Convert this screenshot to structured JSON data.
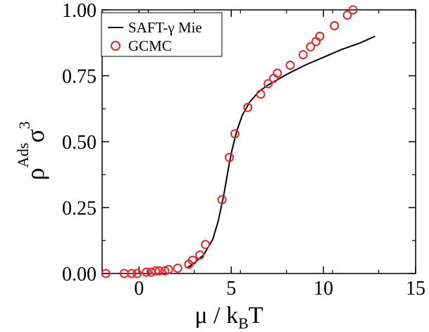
{
  "chart_data": {
    "type": "scatter",
    "xlabel": {
      "main": "μ / k",
      "sub": "B",
      "tail": "T"
    },
    "ylabel": {
      "base": "ρ",
      "sup": "Ads",
      "main": "σ",
      "exp": "3"
    },
    "xlim": [
      -2,
      15
    ],
    "ylim": [
      0,
      1.0
    ],
    "xticks": [
      0,
      5,
      10,
      15
    ],
    "yticks": [
      0.0,
      0.25,
      0.5,
      0.75,
      1.0
    ],
    "xtick_labels": [
      "0",
      "5",
      "10",
      "15"
    ],
    "ytick_labels": [
      "0.00",
      "0.25",
      "0.50",
      "0.75",
      "1.00"
    ],
    "grid": false,
    "legend_position": "top-left",
    "colors": {
      "line": "#000000",
      "markers": "#e8232a"
    },
    "series": [
      {
        "name": "SAFT-γ Mie",
        "style": "line",
        "x": [
          2.6,
          3.0,
          3.5,
          4.0,
          4.3,
          4.6,
          4.85,
          5.05,
          5.3,
          5.6,
          6.0,
          6.5,
          7.0,
          7.5,
          8.0,
          9.0,
          10.0,
          11.0,
          12.0,
          12.8
        ],
        "y": [
          0.02,
          0.04,
          0.07,
          0.13,
          0.2,
          0.3,
          0.4,
          0.47,
          0.54,
          0.6,
          0.65,
          0.69,
          0.715,
          0.735,
          0.755,
          0.79,
          0.82,
          0.85,
          0.875,
          0.9
        ]
      },
      {
        "name": "GCMC",
        "style": "markers",
        "x": [
          -1.8,
          -0.8,
          -0.4,
          -0.1,
          0.4,
          0.65,
          0.9,
          1.1,
          1.4,
          1.6,
          2.1,
          2.7,
          2.9,
          3.3,
          3.6,
          4.5,
          4.9,
          5.2,
          5.9,
          6.6,
          7.0,
          7.3,
          7.5,
          8.2,
          8.9,
          9.3,
          9.6,
          9.8,
          10.6,
          11.3,
          11.6
        ],
        "y": [
          0.0,
          0.0,
          0.0,
          0.0,
          0.005,
          0.005,
          0.01,
          0.01,
          0.01,
          0.015,
          0.02,
          0.035,
          0.05,
          0.07,
          0.11,
          0.28,
          0.44,
          0.53,
          0.63,
          0.68,
          0.72,
          0.74,
          0.76,
          0.79,
          0.83,
          0.86,
          0.88,
          0.9,
          0.94,
          0.98,
          1.0
        ]
      }
    ]
  }
}
